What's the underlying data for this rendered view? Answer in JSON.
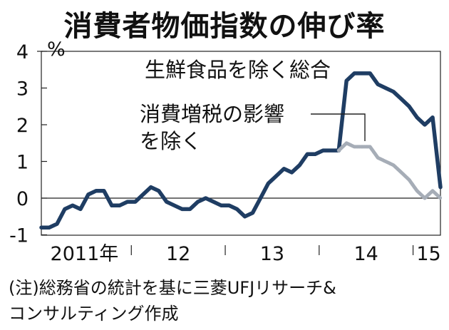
{
  "chart_data": {
    "type": "line",
    "title": "消費者物価指数の伸び率",
    "ylabel": "%",
    "ylim": [
      -1,
      4
    ],
    "yticks": [
      "4",
      "3",
      "2",
      "1",
      "0",
      "-1"
    ],
    "x_year_labels": [
      "2011年",
      "12",
      "13",
      "14",
      "15"
    ],
    "series": [
      {
        "name": "生鮮食品を除く総合",
        "color": "#1f3d63",
        "values": [
          -0.8,
          -0.8,
          -0.7,
          -0.3,
          -0.2,
          -0.3,
          0.1,
          0.2,
          0.2,
          -0.2,
          -0.2,
          -0.1,
          -0.1,
          0.1,
          0.3,
          0.2,
          -0.1,
          -0.2,
          -0.3,
          -0.3,
          -0.1,
          0.0,
          -0.1,
          -0.2,
          -0.2,
          -0.3,
          -0.5,
          -0.4,
          0.0,
          0.4,
          0.6,
          0.8,
          0.7,
          0.9,
          1.2,
          1.2,
          1.3,
          1.3,
          1.3,
          3.2,
          3.4,
          3.4,
          3.4,
          3.1,
          3.0,
          2.9,
          2.7,
          2.5,
          2.2,
          2.0,
          2.2,
          0.3
        ]
      },
      {
        "name": "消費増税の影響を除く",
        "color": "#a6adb7",
        "start_index": 38,
        "values": [
          1.3,
          1.5,
          1.4,
          1.4,
          1.4,
          1.1,
          1.0,
          0.9,
          0.7,
          0.5,
          0.2,
          0.0,
          0.2,
          0.0
        ]
      }
    ],
    "annotations": [
      {
        "text": "生鮮食品を除く総合"
      },
      {
        "text_lines": [
          "消費増税の影響",
          "を除く"
        ]
      }
    ]
  },
  "note": {
    "line1": "(注)総務省の統計を基に三菱UFJリサーチ&",
    "line2": "コンサルティング作成"
  }
}
